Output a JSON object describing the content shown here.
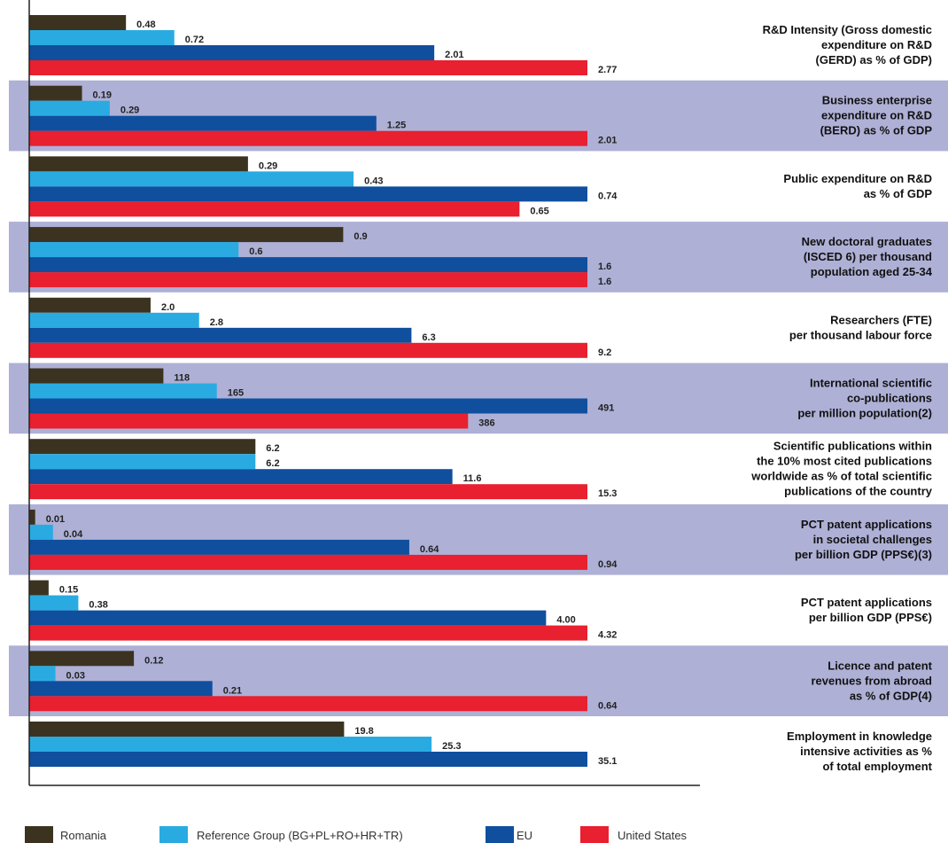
{
  "chart_data": {
    "type": "bar",
    "categories": [
      "R&D Intensity (Gross domestic\nexpenditure on R&D\n(GERD) as % of GDP)",
      "Business enterprise\nexpenditure on R&D\n(BERD) as % of GDP",
      "Public expenditure on R&D\nas % of GDP",
      "New doctoral graduates\n(ISCED 6) per thousand\npopulation aged 25-34",
      "Researchers (FTE)\nper thousand labour force",
      "International scientific\nco-publications\nper million population(2)",
      "Scientific publications within\nthe 10% most cited publications\nworldwide as % of total scientific\npublications of the country",
      "PCT patent applications\nin societal challenges\nper billion GDP (PPS€)(3)",
      "PCT patent applications\nper billion GDP (PPS€)",
      "Licence and patent\nrevenues from abroad\nas % of GDP(4)",
      "Employment in knowledge\nintensive activities as %\nof total employment"
    ],
    "series": [
      {
        "name": "Romania",
        "color": "#3b3320",
        "values": [
          0.48,
          0.19,
          0.29,
          0.9,
          2.0,
          118,
          6.2,
          0.01,
          0.15,
          0.12,
          19.8
        ],
        "value_labels": [
          "0.48",
          "0.19",
          "0.29",
          "0.9",
          "2.0",
          "118",
          "6.2",
          "0.01",
          "0.15",
          "0.12",
          "19.8"
        ]
      },
      {
        "name": "Reference Group (BG+PL+RO+HR+TR)",
        "color": "#29abe2",
        "values": [
          0.72,
          0.29,
          0.43,
          0.6,
          2.8,
          165,
          6.2,
          0.04,
          0.38,
          0.03,
          25.3
        ],
        "value_labels": [
          "0.72",
          "0.29",
          "0.43",
          "0.6",
          "2.8",
          "165",
          "6.2",
          "0.04",
          "0.38",
          "0.03",
          "25.3"
        ]
      },
      {
        "name": "EU",
        "color": "#0f4f9e",
        "values": [
          2.01,
          1.25,
          0.74,
          1.6,
          6.3,
          491,
          11.6,
          0.64,
          4.0,
          0.21,
          35.1
        ],
        "value_labels": [
          "2.01",
          "1.25",
          "0.74",
          "1.6",
          "6.3",
          "491",
          "11.6",
          "0.64",
          "4.00",
          "0.21",
          "35.1"
        ]
      },
      {
        "name": "United States",
        "color": "#e8202f",
        "values": [
          2.77,
          2.01,
          0.65,
          1.6,
          9.2,
          386,
          15.3,
          0.94,
          4.32,
          0.64,
          null
        ],
        "value_labels": [
          "2.77",
          "2.01",
          "0.65",
          "1.6",
          "9.2",
          "386",
          "15.3",
          "0.94",
          "4.32",
          "0.64",
          null
        ]
      }
    ],
    "band_color": "#aeb0d6"
  }
}
